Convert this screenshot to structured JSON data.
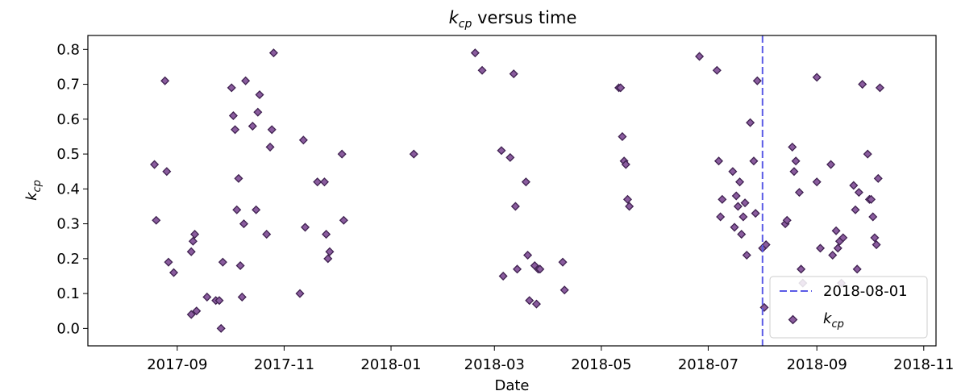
{
  "chart_data": {
    "type": "scatter",
    "title_main": "k",
    "title_sub": "cp",
    "title_rest": " versus time",
    "xlabel": "Date",
    "ylabel_main": "k",
    "ylabel_sub": "cp",
    "xlim": [
      "2017-07-12",
      "2018-11-08"
    ],
    "ylim": [
      -0.05,
      0.84
    ],
    "x_ticks": [
      "2017-09-01",
      "2017-11-01",
      "2018-01-01",
      "2018-03-01",
      "2018-05-01",
      "2018-07-01",
      "2018-09-01",
      "2018-11-01"
    ],
    "x_tick_labels": [
      "2017-09",
      "2017-11",
      "2018-01",
      "2018-03",
      "2018-05",
      "2018-07",
      "2018-09",
      "2018-11"
    ],
    "y_ticks": [
      0.0,
      0.1,
      0.2,
      0.3,
      0.4,
      0.5,
      0.6,
      0.7,
      0.8
    ],
    "y_tick_labels": [
      "0.0",
      "0.1",
      "0.2",
      "0.3",
      "0.4",
      "0.5",
      "0.6",
      "0.7",
      "0.8"
    ],
    "grid": false,
    "legend_position": "lower-right",
    "colors": {
      "marker_fill": "#8a5c9e",
      "marker_edge": "#3f2150",
      "vline": "#5a5ae6"
    },
    "vline": {
      "x": "2018-08-01",
      "label": "2018-08-01"
    },
    "series": [
      {
        "name_main": "k",
        "name_sub": "cp",
        "points": [
          {
            "x": "2017-08-19",
            "y": 0.47
          },
          {
            "x": "2017-08-20",
            "y": 0.31
          },
          {
            "x": "2017-08-25",
            "y": 0.71
          },
          {
            "x": "2017-08-26",
            "y": 0.45
          },
          {
            "x": "2017-08-27",
            "y": 0.19
          },
          {
            "x": "2017-08-30",
            "y": 0.16
          },
          {
            "x": "2017-09-09",
            "y": 0.04
          },
          {
            "x": "2017-09-09",
            "y": 0.22
          },
          {
            "x": "2017-09-10",
            "y": 0.25
          },
          {
            "x": "2017-09-11",
            "y": 0.27
          },
          {
            "x": "2017-09-12",
            "y": 0.05
          },
          {
            "x": "2017-09-18",
            "y": 0.09
          },
          {
            "x": "2017-09-23",
            "y": 0.08
          },
          {
            "x": "2017-09-25",
            "y": 0.08
          },
          {
            "x": "2017-09-26",
            "y": 0.0
          },
          {
            "x": "2017-09-27",
            "y": 0.19
          },
          {
            "x": "2017-10-02",
            "y": 0.69
          },
          {
            "x": "2017-10-03",
            "y": 0.61
          },
          {
            "x": "2017-10-04",
            "y": 0.57
          },
          {
            "x": "2017-10-05",
            "y": 0.34
          },
          {
            "x": "2017-10-06",
            "y": 0.43
          },
          {
            "x": "2017-10-07",
            "y": 0.18
          },
          {
            "x": "2017-10-08",
            "y": 0.09
          },
          {
            "x": "2017-10-09",
            "y": 0.3
          },
          {
            "x": "2017-10-10",
            "y": 0.71
          },
          {
            "x": "2017-10-14",
            "y": 0.58
          },
          {
            "x": "2017-10-16",
            "y": 0.34
          },
          {
            "x": "2017-10-17",
            "y": 0.62
          },
          {
            "x": "2017-10-18",
            "y": 0.67
          },
          {
            "x": "2017-10-22",
            "y": 0.27
          },
          {
            "x": "2017-10-24",
            "y": 0.52
          },
          {
            "x": "2017-10-25",
            "y": 0.57
          },
          {
            "x": "2017-10-26",
            "y": 0.79
          },
          {
            "x": "2017-11-10",
            "y": 0.1
          },
          {
            "x": "2017-11-12",
            "y": 0.54
          },
          {
            "x": "2017-11-13",
            "y": 0.29
          },
          {
            "x": "2017-11-20",
            "y": 0.42
          },
          {
            "x": "2017-11-24",
            "y": 0.42
          },
          {
            "x": "2017-11-25",
            "y": 0.27
          },
          {
            "x": "2017-11-26",
            "y": 0.2
          },
          {
            "x": "2017-11-27",
            "y": 0.22
          },
          {
            "x": "2017-12-04",
            "y": 0.5
          },
          {
            "x": "2017-12-05",
            "y": 0.31
          },
          {
            "x": "2018-01-14",
            "y": 0.5
          },
          {
            "x": "2018-02-18",
            "y": 0.79
          },
          {
            "x": "2018-02-22",
            "y": 0.74
          },
          {
            "x": "2018-03-05",
            "y": 0.51
          },
          {
            "x": "2018-03-06",
            "y": 0.15
          },
          {
            "x": "2018-03-10",
            "y": 0.49
          },
          {
            "x": "2018-03-12",
            "y": 0.73
          },
          {
            "x": "2018-03-13",
            "y": 0.35
          },
          {
            "x": "2018-03-14",
            "y": 0.17
          },
          {
            "x": "2018-03-19",
            "y": 0.42
          },
          {
            "x": "2018-03-20",
            "y": 0.21
          },
          {
            "x": "2018-03-21",
            "y": 0.08
          },
          {
            "x": "2018-03-24",
            "y": 0.18
          },
          {
            "x": "2018-03-25",
            "y": 0.07
          },
          {
            "x": "2018-03-26",
            "y": 0.17
          },
          {
            "x": "2018-03-27",
            "y": 0.17
          },
          {
            "x": "2018-04-09",
            "y": 0.19
          },
          {
            "x": "2018-04-10",
            "y": 0.11
          },
          {
            "x": "2018-05-11",
            "y": 0.69
          },
          {
            "x": "2018-05-12",
            "y": 0.69
          },
          {
            "x": "2018-05-13",
            "y": 0.55
          },
          {
            "x": "2018-05-14",
            "y": 0.48
          },
          {
            "x": "2018-05-15",
            "y": 0.47
          },
          {
            "x": "2018-05-16",
            "y": 0.37
          },
          {
            "x": "2018-05-17",
            "y": 0.35
          },
          {
            "x": "2018-06-26",
            "y": 0.78
          },
          {
            "x": "2018-07-06",
            "y": 0.74
          },
          {
            "x": "2018-07-07",
            "y": 0.48
          },
          {
            "x": "2018-07-08",
            "y": 0.32
          },
          {
            "x": "2018-07-09",
            "y": 0.37
          },
          {
            "x": "2018-07-15",
            "y": 0.45
          },
          {
            "x": "2018-07-16",
            "y": 0.29
          },
          {
            "x": "2018-07-17",
            "y": 0.38
          },
          {
            "x": "2018-07-18",
            "y": 0.35
          },
          {
            "x": "2018-07-19",
            "y": 0.42
          },
          {
            "x": "2018-07-20",
            "y": 0.27
          },
          {
            "x": "2018-07-21",
            "y": 0.32
          },
          {
            "x": "2018-07-22",
            "y": 0.36
          },
          {
            "x": "2018-07-23",
            "y": 0.21
          },
          {
            "x": "2018-07-25",
            "y": 0.59
          },
          {
            "x": "2018-07-27",
            "y": 0.48
          },
          {
            "x": "2018-07-28",
            "y": 0.33
          },
          {
            "x": "2018-07-29",
            "y": 0.71
          },
          {
            "x": "2018-08-01",
            "y": 0.23
          },
          {
            "x": "2018-08-02",
            "y": 0.06
          },
          {
            "x": "2018-08-03",
            "y": 0.24
          },
          {
            "x": "2018-08-14",
            "y": 0.3
          },
          {
            "x": "2018-08-15",
            "y": 0.31
          },
          {
            "x": "2018-08-18",
            "y": 0.52
          },
          {
            "x": "2018-08-19",
            "y": 0.45
          },
          {
            "x": "2018-08-20",
            "y": 0.48
          },
          {
            "x": "2018-08-22",
            "y": 0.39
          },
          {
            "x": "2018-08-23",
            "y": 0.17
          },
          {
            "x": "2018-08-24",
            "y": 0.13
          },
          {
            "x": "2018-09-01",
            "y": 0.42
          },
          {
            "x": "2018-09-01",
            "y": 0.72
          },
          {
            "x": "2018-09-03",
            "y": 0.23
          },
          {
            "x": "2018-09-09",
            "y": 0.47
          },
          {
            "x": "2018-09-10",
            "y": 0.21
          },
          {
            "x": "2018-09-12",
            "y": 0.28
          },
          {
            "x": "2018-09-13",
            "y": 0.23
          },
          {
            "x": "2018-09-14",
            "y": 0.25
          },
          {
            "x": "2018-09-15",
            "y": 0.13
          },
          {
            "x": "2018-09-16",
            "y": 0.26
          },
          {
            "x": "2018-09-22",
            "y": 0.41
          },
          {
            "x": "2018-09-23",
            "y": 0.34
          },
          {
            "x": "2018-09-24",
            "y": 0.17
          },
          {
            "x": "2018-09-25",
            "y": 0.39
          },
          {
            "x": "2018-09-27",
            "y": 0.7
          },
          {
            "x": "2018-09-30",
            "y": 0.5
          },
          {
            "x": "2018-10-01",
            "y": 0.37
          },
          {
            "x": "2018-10-02",
            "y": 0.37
          },
          {
            "x": "2018-10-03",
            "y": 0.32
          },
          {
            "x": "2018-10-04",
            "y": 0.26
          },
          {
            "x": "2018-10-05",
            "y": 0.24
          },
          {
            "x": "2018-10-06",
            "y": 0.43
          },
          {
            "x": "2018-10-07",
            "y": 0.69
          }
        ]
      }
    ]
  }
}
